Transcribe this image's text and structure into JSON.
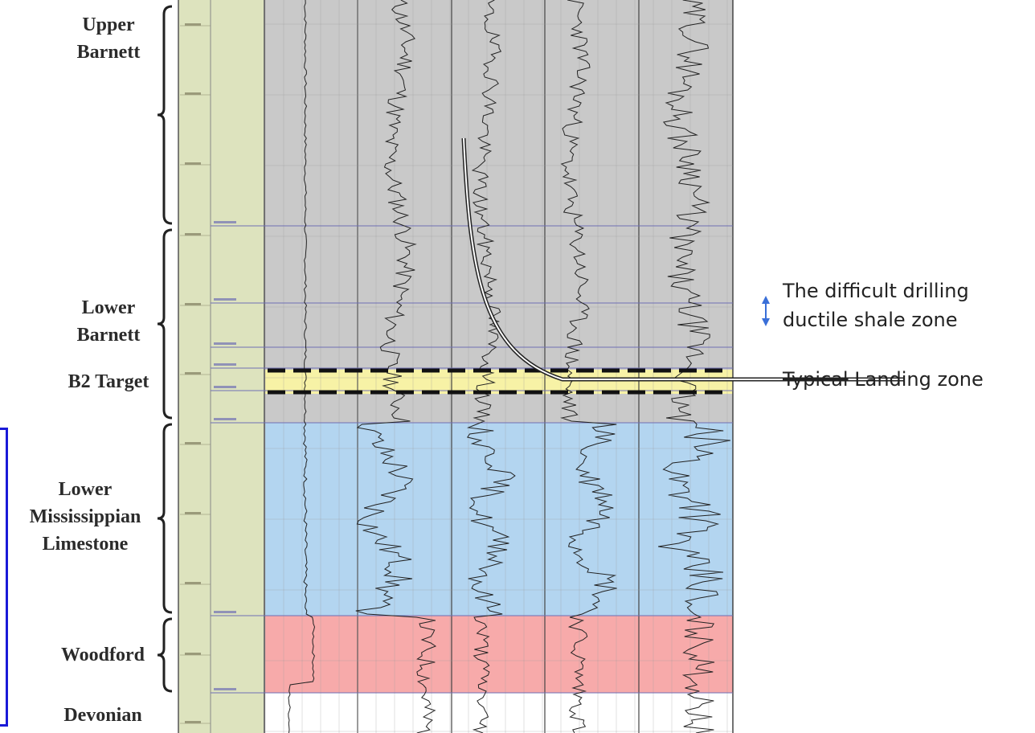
{
  "zones": [
    {
      "key": "upper_barnett",
      "label": "Upper\nBarnett",
      "color": "#c9c9c9"
    },
    {
      "key": "lower_barnett",
      "label": "Lower\nBarnett",
      "color": "#c9c9c9"
    },
    {
      "key": "b2_target",
      "label": "B2 Target",
      "color": "#f7f2a6"
    },
    {
      "key": "lower_mississippian",
      "label": "Lower\nMississippian\nLimestone",
      "color": "#b3d5f0"
    },
    {
      "key": "woodford",
      "label": "Woodford",
      "color": "#f7aaaa"
    },
    {
      "key": "devonian",
      "label": "Devonian",
      "color": "#ffffff"
    }
  ],
  "annotations": {
    "difficult_zone_line1": "The difficult drilling",
    "difficult_zone_line2": "ductile shale zone",
    "landing_struck": "Typical",
    "landing_rest": " Landing zone"
  },
  "log_track": {
    "depth_column_color": "#dde3be",
    "dashed_box_color": "#111111",
    "formation_line_color": "#6f6fb4",
    "arrow_color": "#3a6fd8"
  }
}
